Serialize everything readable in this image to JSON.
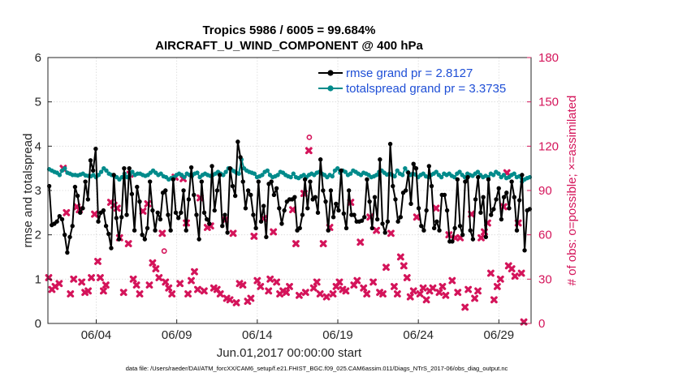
{
  "chart_data": {
    "type": "line",
    "title": "Tropics 5986 / 6005 = 99.684%",
    "subtitle": "AIRCRAFT_U_WIND_COMPONENT @ 400 hPa",
    "xlabel": "Jun.01,2017 00:00:00 start",
    "ylabel": "rmse and totalspread",
    "y2label": "# of obs: o=possible; ×=assimilated",
    "xlim": [
      0.5,
      30.5
    ],
    "ylim": [
      0,
      6
    ],
    "y2lim": [
      0,
      180
    ],
    "x_ticks": [
      3.5,
      8.5,
      13.5,
      18.5,
      23.5,
      28.5
    ],
    "x_tick_labels": [
      "06/04",
      "06/09",
      "06/14",
      "06/19",
      "06/24",
      "06/29"
    ],
    "y_ticks": [
      0,
      1,
      2,
      3,
      4,
      5,
      6
    ],
    "y2_ticks": [
      0,
      30,
      60,
      90,
      120,
      150,
      180
    ],
    "legend_position": "top-right",
    "colors": {
      "rmse": "#000000",
      "spread": "#008b8b",
      "obs": "#d4145a"
    },
    "footnote": "data file: /Users/raeder/DAI/ATM_forcXX/CAM6_setup/f.e21.FHIST_BGC.f09_025.CAM6assim.011/Diags_NTrS_2017-06/obs_diag_output.nc",
    "series": [
      {
        "name": "rmse grand pr = 2.8127",
        "key": "rmse",
        "values": [
          3.1,
          2.22,
          2.25,
          2.3,
          2.42,
          2.35,
          2.0,
          1.6,
          1.95,
          2.2,
          3.08,
          2.88,
          2.5,
          2.6,
          3.2,
          2.8,
          3.68,
          3.45,
          3.94,
          2.3,
          2.5,
          2.55,
          2.2,
          2.02,
          1.7,
          3.35,
          2.38,
          1.9,
          2.4,
          3.5,
          2.45,
          3.5,
          2.92,
          2.1,
          3.08,
          2.75,
          2.0,
          1.9,
          2.15,
          3.2,
          2.55,
          2.1,
          2.5,
          2.35,
          2.95,
          3.0,
          2.45,
          2.1,
          3.25,
          2.5,
          2.38,
          2.5,
          3.0,
          2.1,
          2.8,
          3.52,
          2.9,
          2.45,
          1.9,
          3.2,
          2.5,
          2.35,
          2.25,
          3.55,
          2.55,
          3.0,
          3.35,
          2.2,
          2.45,
          2.05,
          3.5,
          3.1,
          2.88,
          4.1,
          3.75,
          3.2,
          2.6,
          3.0,
          2.9,
          2.45,
          2.15,
          3.2,
          2.3,
          2.65,
          1.95,
          3.15,
          3.2,
          2.9,
          3.05,
          2.6,
          2.25,
          2.55,
          2.75,
          2.8,
          2.8,
          2.85,
          2.1,
          2.15,
          2.45,
          3.25,
          2.6,
          3.2,
          2.8,
          2.85,
          2.5,
          3.7,
          3.0,
          2.75,
          2.1,
          3.0,
          2.4,
          2.7,
          2.55,
          3.45,
          2.48,
          2.15,
          3.0,
          2.45,
          2.45,
          2.3,
          2.3,
          2.32,
          2.4,
          3.25,
          2.75,
          2.15,
          2.85,
          2.35,
          3.7,
          2.25,
          2.05,
          2.3,
          4.05,
          3.1,
          2.8,
          2.3,
          2.4,
          2.95,
          3.0,
          3.4,
          2.7,
          3.6,
          3.5,
          2.6,
          2.2,
          2.1,
          2.55,
          3.55,
          3.1,
          2.15,
          2.3,
          2.1,
          2.9,
          2.9,
          2.55,
          1.85,
          1.85,
          2.15,
          3.25,
          2.2,
          2.0,
          3.2,
          3.3,
          2.1,
          1.9,
          2.8,
          3.3,
          2.5,
          2.85,
          1.95,
          3.25,
          2.45,
          2.58,
          2.8,
          3.05,
          2.35,
          2.85,
          2.95,
          2.6,
          3.2,
          2.85,
          2.1,
          2.78,
          3.35,
          1.65,
          2.55,
          2.58
        ]
      },
      {
        "name": "totalspread grand pr = 3.3735",
        "key": "spread",
        "values": [
          3.48,
          3.45,
          3.42,
          3.4,
          3.35,
          3.45,
          3.5,
          3.4,
          3.38,
          3.35,
          3.35,
          3.34,
          3.36,
          3.38,
          3.34,
          3.33,
          3.32,
          3.35,
          3.3,
          3.35,
          3.42,
          3.5,
          3.45,
          3.38,
          3.35,
          3.33,
          3.3,
          3.25,
          3.3,
          3.38,
          3.3,
          3.35,
          3.42,
          3.35,
          3.38,
          3.38,
          3.35,
          3.33,
          3.35,
          3.4,
          3.45,
          3.4,
          3.35,
          3.38,
          3.32,
          3.3,
          3.25,
          3.28,
          3.3,
          3.35,
          3.38,
          3.35,
          3.3,
          3.38,
          3.35,
          3.33,
          3.38,
          3.4,
          3.3,
          3.35,
          3.38,
          3.35,
          3.33,
          3.35,
          3.38,
          3.42,
          3.38,
          3.35,
          3.42,
          3.5,
          3.48,
          3.44,
          3.4,
          3.38,
          3.7,
          3.5,
          3.45,
          3.42,
          3.4,
          3.38,
          3.3,
          3.32,
          3.35,
          3.42,
          3.45,
          3.35,
          3.3,
          3.32,
          3.35,
          3.42,
          3.4,
          3.35,
          3.32,
          3.3,
          3.38,
          3.3,
          3.28,
          3.32,
          3.35,
          3.3,
          3.35,
          3.38,
          3.35,
          3.4,
          3.42,
          3.38,
          3.35,
          3.3,
          3.35,
          3.32,
          3.45,
          3.5,
          3.4,
          3.45,
          3.42,
          3.35,
          3.38,
          3.45,
          3.42,
          3.38,
          3.35,
          3.4,
          3.38,
          3.35,
          3.3,
          3.32,
          3.35,
          3.42,
          3.45,
          3.4,
          3.36,
          3.38,
          3.35,
          3.32,
          3.45,
          3.38,
          3.35,
          3.5,
          3.42,
          3.35,
          3.38,
          3.36,
          3.3,
          3.35,
          3.38,
          3.32,
          3.3,
          3.35,
          3.38,
          3.42,
          3.35,
          3.3,
          3.38,
          3.35,
          3.38,
          3.33,
          3.3,
          3.38,
          3.42,
          3.35,
          3.3,
          3.38,
          3.35,
          3.33,
          3.38,
          3.42,
          3.35,
          3.3,
          3.33,
          3.3,
          3.38,
          3.35,
          3.42,
          3.38,
          3.3,
          3.35,
          3.28,
          3.3,
          3.35,
          3.38,
          3.3,
          3.32,
          3.2,
          3.25,
          3.28,
          3.3
        ]
      },
      {
        "name": "assimilated observations",
        "key": "obs",
        "marker": "x",
        "points": [
          [
            0.55,
            31
          ],
          [
            0.75,
            23
          ],
          [
            0.95,
            25
          ],
          [
            1.2,
            27
          ],
          [
            1.45,
            105
          ],
          [
            1.65,
            75
          ],
          [
            1.9,
            20
          ],
          [
            2.1,
            30
          ],
          [
            2.3,
            79
          ],
          [
            2.45,
            77
          ],
          [
            2.6,
            28
          ],
          [
            2.8,
            21
          ],
          [
            3.0,
            22
          ],
          [
            3.2,
            31
          ],
          [
            3.4,
            74
          ],
          [
            3.6,
            42
          ],
          [
            3.75,
            31
          ],
          [
            3.95,
            22
          ],
          [
            4.1,
            26
          ],
          [
            4.4,
            82
          ],
          [
            4.6,
            80
          ],
          [
            4.8,
            78
          ],
          [
            4.95,
            58
          ],
          [
            5.2,
            21
          ],
          [
            5.5,
            54
          ],
          [
            5.6,
            101
          ],
          [
            5.8,
            30
          ],
          [
            6.0,
            26
          ],
          [
            6.2,
            20
          ],
          [
            6.4,
            76
          ],
          [
            6.7,
            81
          ],
          [
            6.8,
            26
          ],
          [
            7.0,
            41
          ],
          [
            7.2,
            37
          ],
          [
            7.4,
            31
          ],
          [
            7.6,
            61
          ],
          [
            7.8,
            28
          ],
          [
            8.0,
            24
          ],
          [
            8.2,
            20
          ],
          [
            8.4,
            99
          ],
          [
            8.7,
            27
          ],
          [
            8.9,
            98
          ],
          [
            9.1,
            68
          ],
          [
            9.2,
            20
          ],
          [
            9.4,
            29
          ],
          [
            9.6,
            35
          ],
          [
            9.8,
            23
          ],
          [
            9.95,
            85
          ],
          [
            10.2,
            22
          ],
          [
            10.4,
            65
          ],
          [
            10.6,
            66
          ],
          [
            10.8,
            24
          ],
          [
            11.0,
            23
          ],
          [
            11.2,
            20
          ],
          [
            11.5,
            70
          ],
          [
            11.6,
            17
          ],
          [
            11.8,
            16
          ],
          [
            12.0,
            61
          ],
          [
            12.2,
            14
          ],
          [
            12.4,
            27
          ],
          [
            12.6,
            26
          ],
          [
            12.9,
            15
          ],
          [
            13.1,
            17
          ],
          [
            13.3,
            59
          ],
          [
            13.5,
            29
          ],
          [
            13.7,
            25
          ],
          [
            13.9,
            71
          ],
          [
            14.2,
            22
          ],
          [
            14.3,
            30
          ],
          [
            14.5,
            62
          ],
          [
            14.7,
            28
          ],
          [
            14.9,
            20
          ],
          [
            15.1,
            22
          ],
          [
            15.3,
            21
          ],
          [
            15.5,
            25
          ],
          [
            15.7,
            77
          ],
          [
            15.9,
            54
          ],
          [
            16.1,
            19
          ],
          [
            16.4,
            88
          ],
          [
            16.5,
            21
          ],
          [
            16.7,
            117
          ],
          [
            17.0,
            24
          ],
          [
            17.2,
            28
          ],
          [
            17.4,
            20
          ],
          [
            17.6,
            54
          ],
          [
            17.8,
            18
          ],
          [
            18.0,
            65
          ],
          [
            18.2,
            20
          ],
          [
            18.4,
            25
          ],
          [
            18.6,
            28
          ],
          [
            18.8,
            23
          ],
          [
            19.0,
            22
          ],
          [
            19.3,
            82
          ],
          [
            19.5,
            26
          ],
          [
            19.7,
            29
          ],
          [
            19.9,
            55
          ],
          [
            20.1,
            24
          ],
          [
            20.3,
            20
          ],
          [
            20.5,
            72
          ],
          [
            20.7,
            28
          ],
          [
            20.9,
            63
          ],
          [
            21.1,
            21
          ],
          [
            21.3,
            20
          ],
          [
            21.5,
            38
          ],
          [
            21.8,
            61
          ],
          [
            22.0,
            25
          ],
          [
            22.2,
            20
          ],
          [
            22.4,
            45
          ],
          [
            22.6,
            39
          ],
          [
            22.8,
            31
          ],
          [
            23.0,
            18
          ],
          [
            23.2,
            22
          ],
          [
            23.4,
            72
          ],
          [
            23.6,
            20
          ],
          [
            23.8,
            24
          ],
          [
            24.0,
            16
          ],
          [
            24.2,
            22
          ],
          [
            24.4,
            24
          ],
          [
            24.6,
            78
          ],
          [
            24.8,
            21
          ],
          [
            25.0,
            25
          ],
          [
            25.2,
            19
          ],
          [
            25.4,
            60
          ],
          [
            25.6,
            29
          ],
          [
            25.8,
            58
          ],
          [
            25.95,
            21
          ],
          [
            26.1,
            58
          ],
          [
            26.4,
            11
          ],
          [
            26.6,
            23
          ],
          [
            26.8,
            74
          ],
          [
            27.0,
            17
          ],
          [
            27.2,
            22
          ],
          [
            27.4,
            58
          ],
          [
            27.6,
            62
          ],
          [
            27.8,
            68
          ],
          [
            28.0,
            34
          ],
          [
            28.2,
            16
          ],
          [
            28.4,
            25
          ],
          [
            28.6,
            30
          ],
          [
            28.8,
            79
          ],
          [
            29.0,
            102
          ],
          [
            29.1,
            39
          ],
          [
            29.3,
            37
          ],
          [
            29.5,
            32
          ],
          [
            29.7,
            68
          ],
          [
            29.9,
            34
          ],
          [
            30.05,
            1
          ]
        ]
      },
      {
        "name": "possible observations",
        "key": "obs_possible",
        "marker": "o",
        "points": [
          [
            7.72,
            49
          ],
          [
            16.73,
            126
          ]
        ]
      }
    ]
  }
}
